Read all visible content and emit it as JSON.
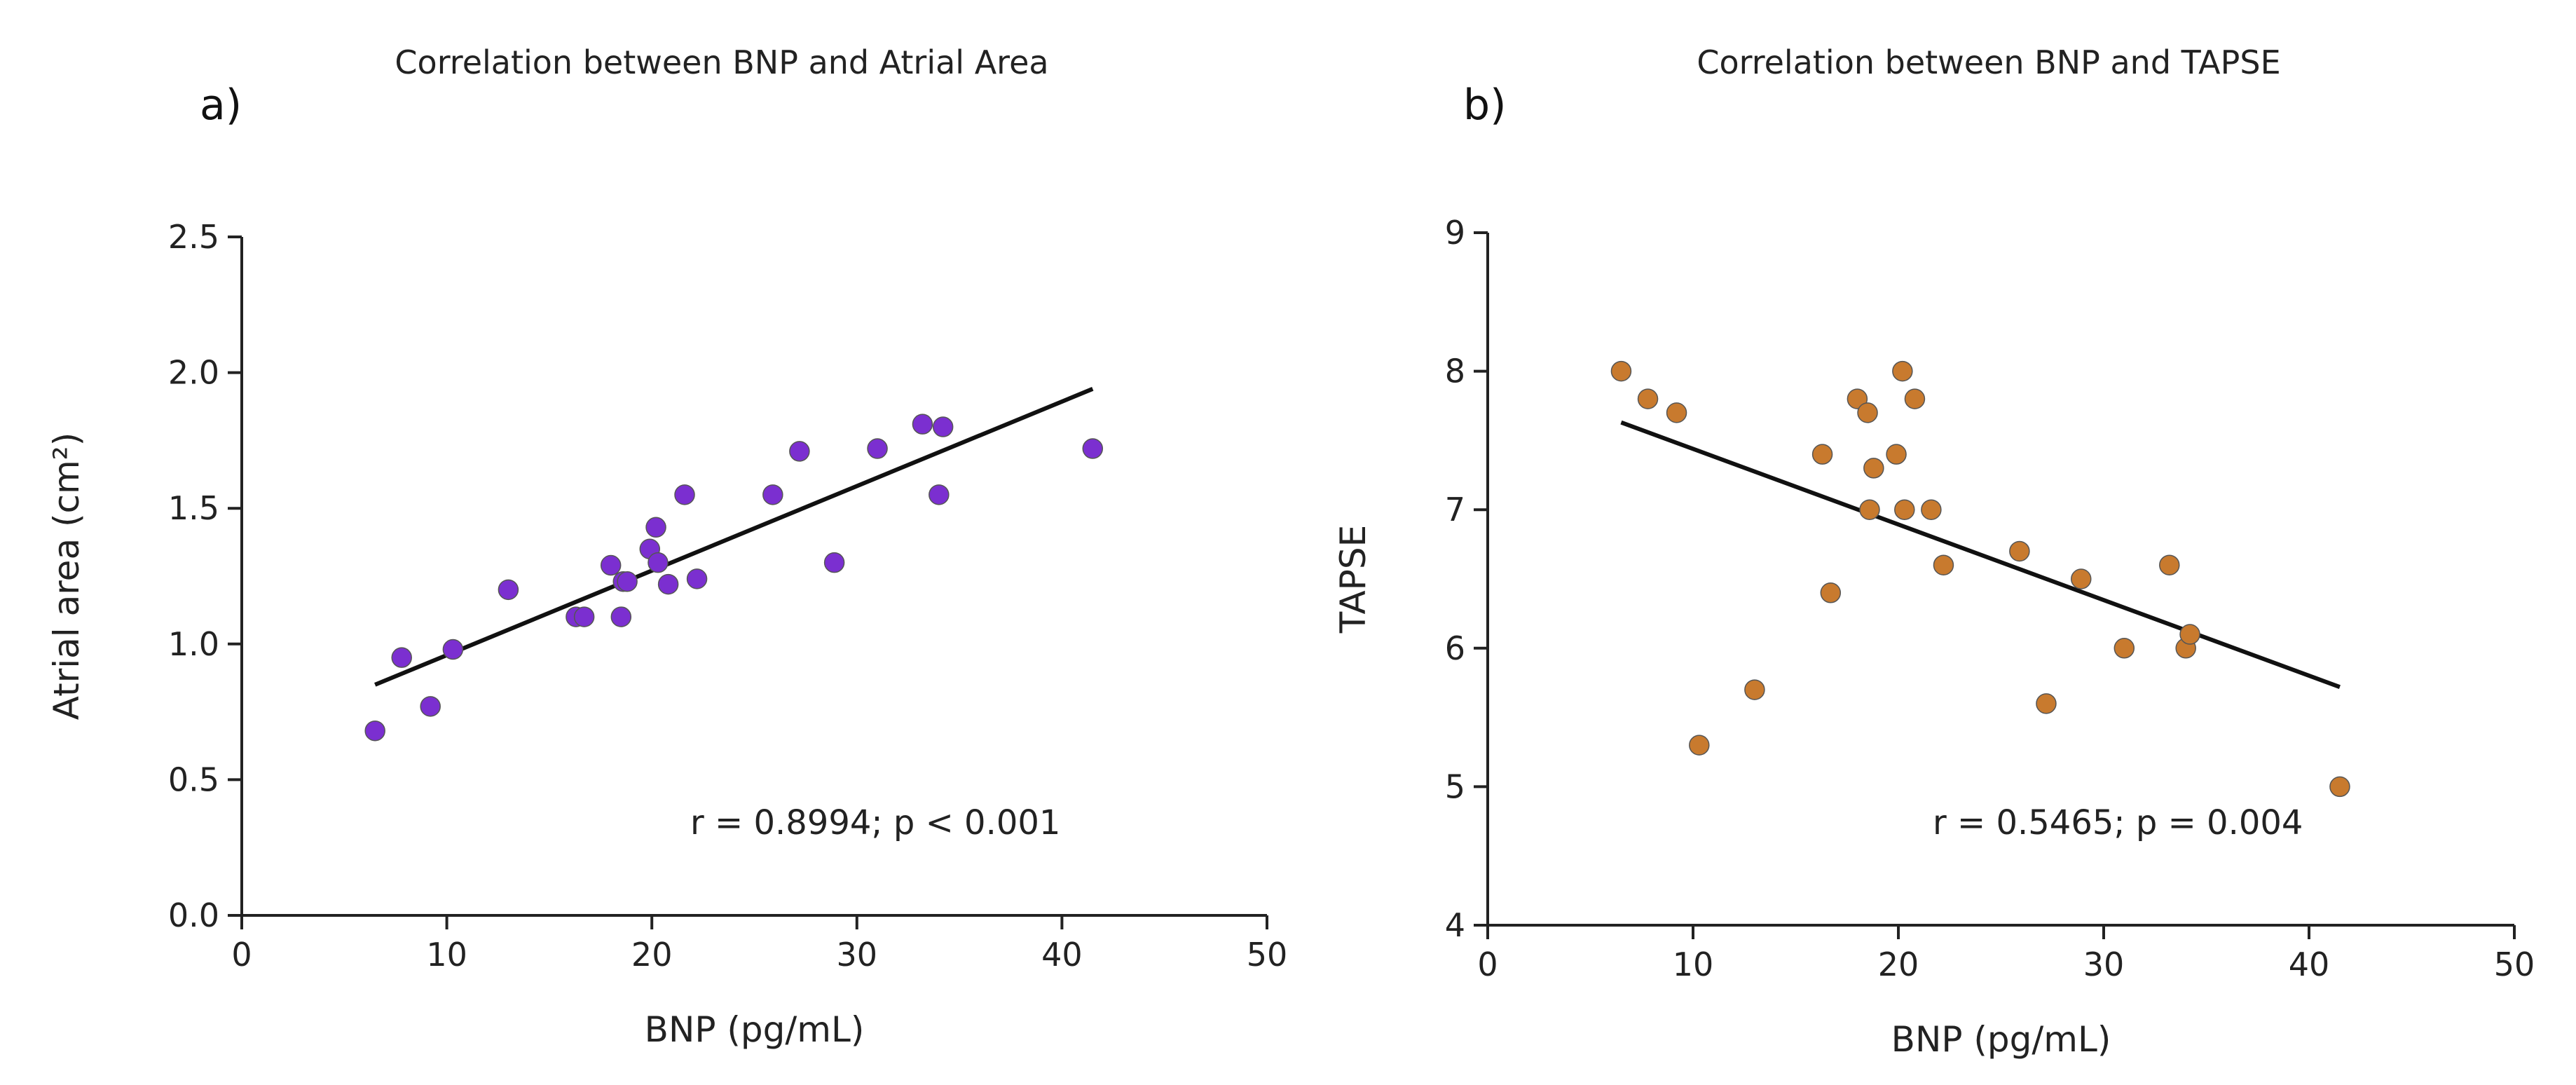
{
  "chart_data": [
    {
      "panel_label": "a)",
      "type": "scatter",
      "title": "Correlation between BNP and Atrial Area",
      "xlabel": "BNP (pg/mL)",
      "ylabel": "Atrial area (cm²)",
      "xlim": [
        0,
        50
      ],
      "ylim": [
        0.0,
        2.5
      ],
      "xticks": [
        "0",
        "10",
        "20",
        "30",
        "40",
        "50"
      ],
      "yticks": [
        "0.0",
        "0.5",
        "1.0",
        "1.5",
        "2.0",
        "2.5"
      ],
      "marker_color": "#7b2fd0",
      "points": [
        [
          6.5,
          0.68
        ],
        [
          7.8,
          0.95
        ],
        [
          9.2,
          0.77
        ],
        [
          10.3,
          0.98
        ],
        [
          13.0,
          1.2
        ],
        [
          16.3,
          1.1
        ],
        [
          16.7,
          1.1
        ],
        [
          18.0,
          1.29
        ],
        [
          18.5,
          1.1
        ],
        [
          18.6,
          1.23
        ],
        [
          18.8,
          1.23
        ],
        [
          19.9,
          1.35
        ],
        [
          20.2,
          1.43
        ],
        [
          20.3,
          1.3
        ],
        [
          20.8,
          1.22
        ],
        [
          21.6,
          1.55
        ],
        [
          22.2,
          1.24
        ],
        [
          25.9,
          1.55
        ],
        [
          27.2,
          1.71
        ],
        [
          28.9,
          1.3
        ],
        [
          31.0,
          1.72
        ],
        [
          33.2,
          1.81
        ],
        [
          34.0,
          1.55
        ],
        [
          34.2,
          1.8
        ],
        [
          41.5,
          1.72
        ]
      ],
      "fit_line": {
        "x": [
          6.5,
          41.5
        ],
        "y": [
          0.85,
          1.94
        ]
      },
      "annotation": "r = 0.8994; p < 0.001"
    },
    {
      "panel_label": "b)",
      "type": "scatter",
      "title": "Correlation between BNP and TAPSE",
      "xlabel": "BNP (pg/mL)",
      "ylabel": "TAPSE",
      "xlim": [
        0,
        50
      ],
      "ylim": [
        4,
        9
      ],
      "xticks": [
        "0",
        "10",
        "20",
        "30",
        "40",
        "50"
      ],
      "yticks": [
        "4",
        "5",
        "6",
        "7",
        "8",
        "9"
      ],
      "marker_color": "#c87a2e",
      "points": [
        [
          6.5,
          8.0
        ],
        [
          7.8,
          7.8
        ],
        [
          9.2,
          7.7
        ],
        [
          10.3,
          5.3
        ],
        [
          13.0,
          5.7
        ],
        [
          16.3,
          7.4
        ],
        [
          16.7,
          6.4
        ],
        [
          18.0,
          7.8
        ],
        [
          18.5,
          7.7
        ],
        [
          18.6,
          7.0
        ],
        [
          18.8,
          7.3
        ],
        [
          19.9,
          7.4
        ],
        [
          20.2,
          8.0
        ],
        [
          20.3,
          7.0
        ],
        [
          20.8,
          7.8
        ],
        [
          21.6,
          7.0
        ],
        [
          22.2,
          6.6
        ],
        [
          25.9,
          6.7
        ],
        [
          27.2,
          5.6
        ],
        [
          28.9,
          6.5
        ],
        [
          31.0,
          6.0
        ],
        [
          33.2,
          6.6
        ],
        [
          34.0,
          6.0
        ],
        [
          34.2,
          6.1
        ],
        [
          41.5,
          5.0
        ]
      ],
      "fit_line": {
        "x": [
          6.5,
          41.5
        ],
        "y": [
          7.63,
          5.72
        ]
      },
      "annotation": "r = 0.5465; p = 0.004"
    }
  ]
}
